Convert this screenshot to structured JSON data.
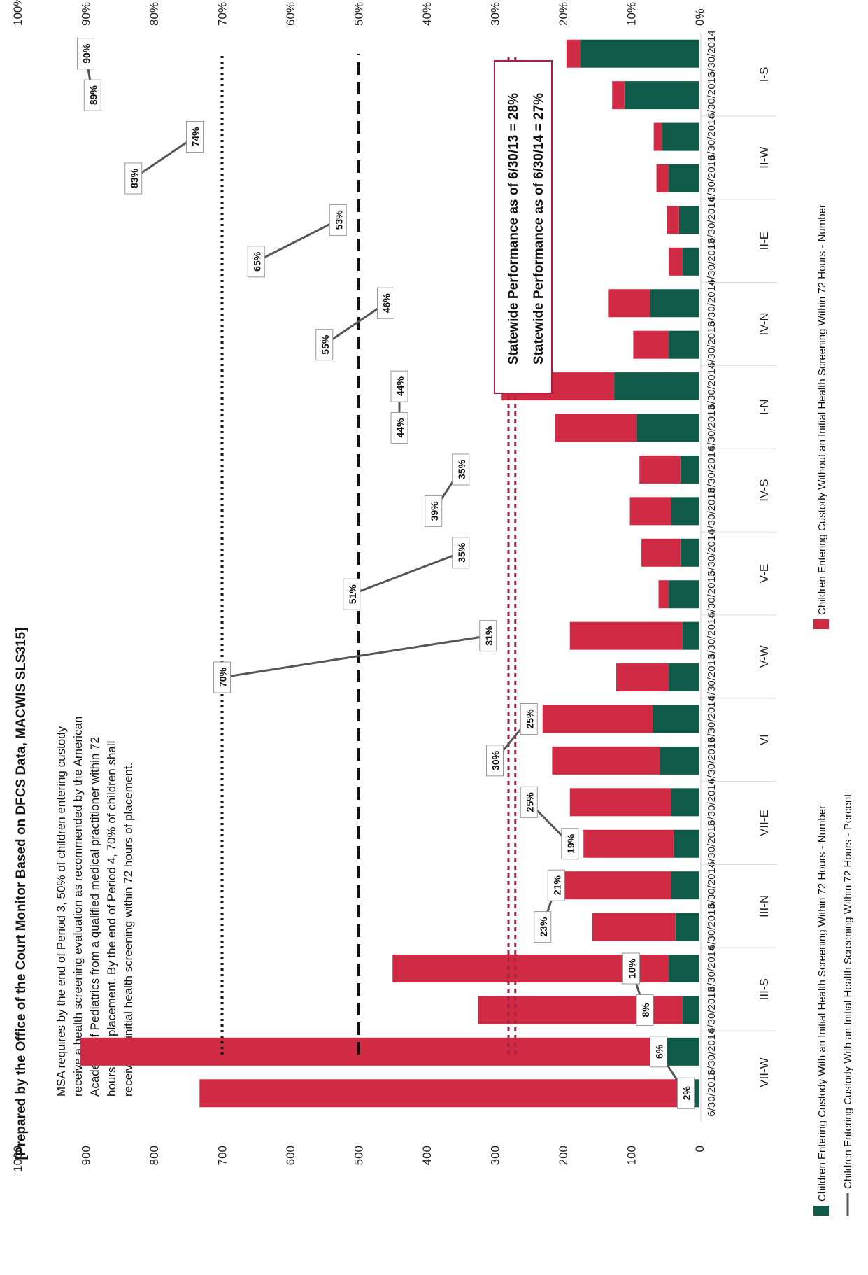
{
  "title_lines": [
    "[Prepared by the Office of the Court Monitor Based on DFCS Data, MACWIS SLS315]"
  ],
  "requirement_note": [
    "MSA requires by the end of Period 3, 50% of children entering custody",
    "receive a health screening evaluation as recommended by the American",
    "Academy of Pediatrics from a qualified medical practitioner within 72",
    "hours after placement. By the end of Period 4, 70% of children shall",
    "receive an initial health screening within 72 hours of placement."
  ],
  "statewide_box": [
    "Statewide Performance as of 6/30/13 = 28%",
    "Statewide Performance as of 6/30/14 = 27%"
  ],
  "colors": {
    "within": "#0f5a48",
    "without": "#d12a45",
    "percent_line": "#555555",
    "statewide_line": "#a52040",
    "target_line": "#111111"
  },
  "chart_data": {
    "type": "bar",
    "stacked": true,
    "orientation": "rotated 90 degrees",
    "left_axis": {
      "ticks": [
        "0",
        "100",
        "200",
        "300",
        "400",
        "500",
        "600",
        "700",
        "800",
        "900",
        "1000"
      ],
      "range": [
        0,
        1000
      ]
    },
    "right_axis": {
      "ticks": [
        "0%",
        "10%",
        "20%",
        "30%",
        "40%",
        "50%",
        "60%",
        "70%",
        "80%",
        "90%",
        "100%"
      ],
      "range": [
        0,
        100
      ]
    },
    "regions": [
      "VII-W",
      "III-S",
      "III-N",
      "VII-E",
      "VI",
      "V-W",
      "V-E",
      "IV-S",
      "I-N",
      "IV-N",
      "II-E",
      "II-W",
      "I-S"
    ],
    "dates": [
      "6/30/2013",
      "6/30/2014"
    ],
    "categories": [
      "6/30/2013",
      "6/30/2014",
      "6/30/2013",
      "6/30/2014",
      "6/30/2013",
      "6/30/2014",
      "6/30/2013",
      "6/30/2014",
      "6/30/2013",
      "6/30/2014",
      "6/30/2013",
      "6/30/2014",
      "6/30/2013",
      "6/30/2014",
      "6/30/2013",
      "6/30/2014",
      "6/30/2013",
      "6/30/2014",
      "6/30/2013",
      "6/30/2014",
      "6/30/2013",
      "6/30/2014",
      "6/30/2013",
      "6/30/2014",
      "6/30/2013",
      "6/30/2014"
    ],
    "series": [
      {
        "name": "Children Entering Custody With an Initial Health Screening Within 72 Hours - Number",
        "values": [
          8,
          48,
          25,
          45,
          35,
          42,
          38,
          42,
          58,
          68,
          45,
          25,
          45,
          28,
          42,
          28,
          92,
          125,
          45,
          72,
          25,
          30,
          45,
          55,
          110,
          175
        ]
      },
      {
        "name": "Children Entering Custody Without an Initial Health Screening Within 72 Hours - Number",
        "values": [
          725,
          860,
          300,
          405,
          122,
          157,
          132,
          148,
          158,
          162,
          77,
          165,
          15,
          57,
          60,
          60,
          120,
          165,
          52,
          62,
          20,
          18,
          18,
          12,
          18,
          20
        ]
      },
      {
        "name": "Children Entering Custody With an Initial Health Screening Within 72 Hours - Percent",
        "values": [
          2,
          6,
          8,
          10,
          23,
          21,
          19,
          25,
          30,
          25,
          70,
          31,
          51,
          35,
          39,
          35,
          44,
          44,
          55,
          46,
          65,
          53,
          83,
          74,
          89,
          90
        ]
      }
    ],
    "percent_labels": [
      "2%",
      "6%",
      "8%",
      "10%",
      "23%",
      "21%",
      "19%",
      "25%",
      "30%",
      "25%",
      "70%",
      "31%",
      "51%",
      "35%",
      "39%",
      "35%",
      "44%",
      "44%",
      "55%",
      "46%",
      "65%",
      "53%",
      "83%",
      "74%",
      "89%",
      "90%"
    ],
    "reference_lines": {
      "statewide_2013": 28,
      "statewide_2014": 27,
      "period3_target": 50,
      "period4_target": 70
    },
    "legend": [
      "Children Entering Custody With an Initial Health Screening Within 72 Hours - Number",
      "Children Entering Custody With an Initial Health Screening Within 72 Hours - Percent",
      "Children Entering Custody Without an Initial Health Screening Within 72 Hours - Number"
    ],
    "legend_position": "bottom"
  }
}
